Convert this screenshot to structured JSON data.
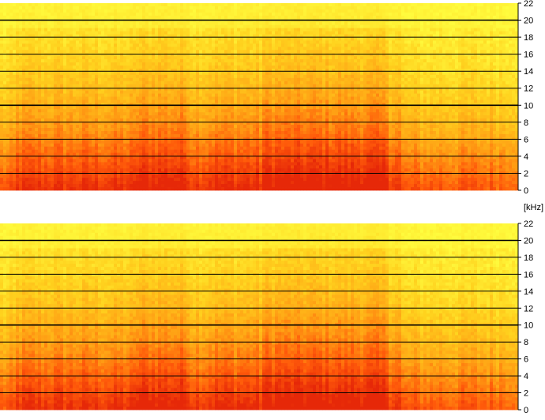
{
  "chart_data": {
    "type": "heatmap",
    "unit_label": "[kHz]",
    "channels": [
      {
        "yticks": [
          "22",
          "20",
          "18",
          "16",
          "14",
          "12",
          "10",
          "8",
          "6",
          "4",
          "2",
          "0"
        ]
      },
      {
        "yticks": [
          "22",
          "20",
          "18",
          "16",
          "14",
          "12",
          "10",
          "8",
          "6",
          "4",
          "2",
          "0"
        ]
      }
    ],
    "ylim": [
      0,
      22
    ],
    "tick_step": 2,
    "colormap": [
      "#ffff40",
      "#ffd21e",
      "#ffa014",
      "#ff5a0a",
      "#e62808"
    ],
    "grid_color": "#000000",
    "axis_side": "right"
  }
}
